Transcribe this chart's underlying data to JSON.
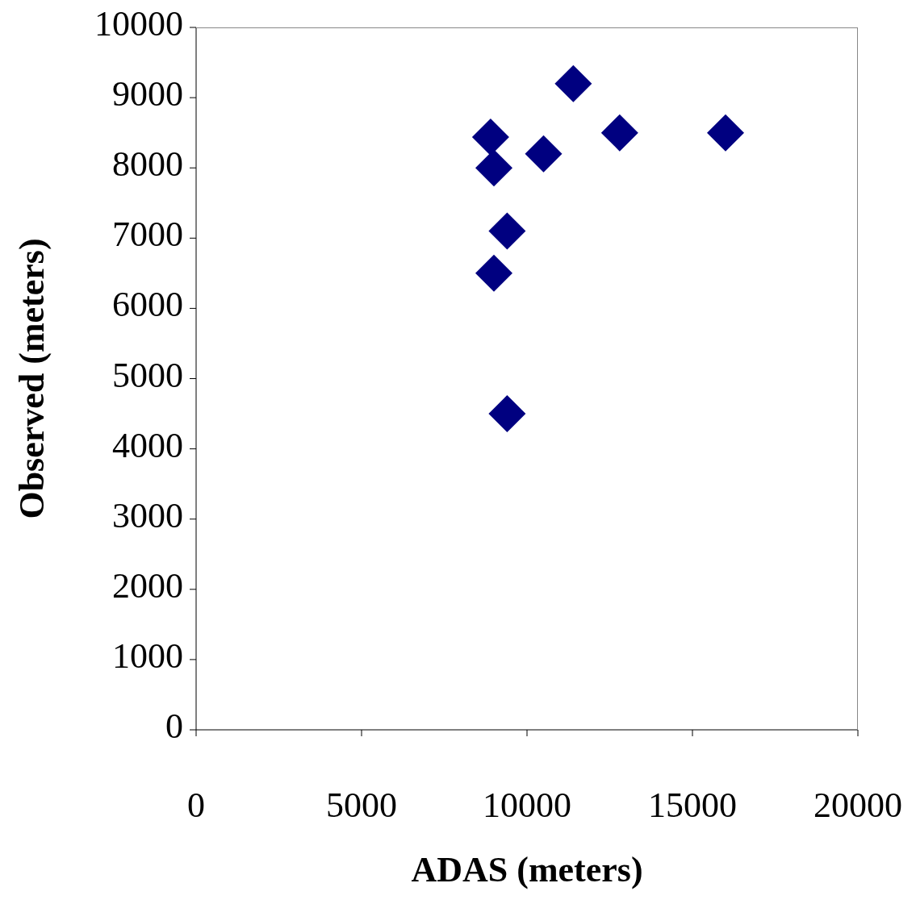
{
  "chart_data": {
    "type": "scatter",
    "xlabel": "ADAS (meters)",
    "ylabel": "Observed (meters)",
    "x": [
      8900,
      9000,
      9400,
      9000,
      9400,
      10500,
      11400,
      12800,
      16000
    ],
    "series": [
      {
        "color": "#000080",
        "values": [
          8440,
          8000,
          7100,
          6500,
          4500,
          8200,
          9200,
          8500,
          8500
        ]
      }
    ],
    "xlim": [
      0,
      20000
    ],
    "xticks": [
      0,
      5000,
      10000,
      15000,
      20000
    ],
    "ylim": [
      0,
      10000
    ],
    "yticks": [
      0,
      1000,
      2000,
      3000,
      4000,
      5000,
      6000,
      7000,
      8000,
      9000,
      10000
    ],
    "grid": false,
    "legend": false,
    "marker": "diamond"
  }
}
